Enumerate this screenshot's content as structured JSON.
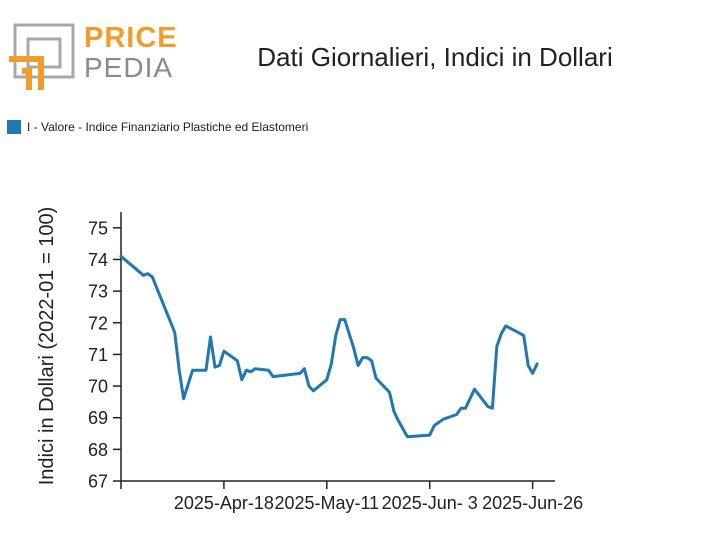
{
  "brand": {
    "word1": "PRICE",
    "word2": "PEDIA",
    "accent_color": "#f29c2b",
    "gray_color": "#8a8a8a"
  },
  "chart_data": {
    "type": "line",
    "title": "Dati Giornalieri, Indici in Dollari",
    "ylabel": "Indici in Dollari (2022-01 = 100)",
    "xlabel": "",
    "ylim": [
      67,
      75.5
    ],
    "yticks": [
      67,
      68,
      69,
      70,
      71,
      72,
      73,
      74,
      75
    ],
    "x_range": [
      "2025-03-26",
      "2025-07-01"
    ],
    "xticks": [
      {
        "date": "2025-04-18",
        "label": "2025-Apr-18"
      },
      {
        "date": "2025-05-11",
        "label": "2025-May-11"
      },
      {
        "date": "2025-06-03",
        "label": "2025-Jun- 3"
      },
      {
        "date": "2025-06-26",
        "label": "2025-Jun-26"
      }
    ],
    "legend_position": "top-left",
    "grid": false,
    "series": [
      {
        "name": "I - Valore - Indice Finanziario Plastiche ed Elastomeri",
        "color": "#1f77b4",
        "points": [
          [
            "2025-03-26",
            74.1
          ],
          [
            "2025-03-31",
            73.5
          ],
          [
            "2025-04-01",
            73.55
          ],
          [
            "2025-04-02",
            73.45
          ],
          [
            "2025-04-07",
            71.7
          ],
          [
            "2025-04-08",
            70.5
          ],
          [
            "2025-04-09",
            69.6
          ],
          [
            "2025-04-11",
            70.5
          ],
          [
            "2025-04-14",
            70.5
          ],
          [
            "2025-04-15",
            71.55
          ],
          [
            "2025-04-16",
            70.6
          ],
          [
            "2025-04-17",
            70.65
          ],
          [
            "2025-04-18",
            71.1
          ],
          [
            "2025-04-21",
            70.8
          ],
          [
            "2025-04-22",
            70.2
          ],
          [
            "2025-04-23",
            70.5
          ],
          [
            "2025-04-24",
            70.45
          ],
          [
            "2025-04-25",
            70.55
          ],
          [
            "2025-04-28",
            70.5
          ],
          [
            "2025-04-29",
            70.3
          ],
          [
            "2025-05-05",
            70.4
          ],
          [
            "2025-05-06",
            70.55
          ],
          [
            "2025-05-07",
            70.0
          ],
          [
            "2025-05-08",
            69.85
          ],
          [
            "2025-05-11",
            70.2
          ],
          [
            "2025-05-12",
            70.7
          ],
          [
            "2025-05-13",
            71.6
          ],
          [
            "2025-05-14",
            72.1
          ],
          [
            "2025-05-15",
            72.1
          ],
          [
            "2025-05-17",
            71.2
          ],
          [
            "2025-05-18",
            70.65
          ],
          [
            "2025-05-19",
            70.9
          ],
          [
            "2025-05-20",
            70.9
          ],
          [
            "2025-05-21",
            70.8
          ],
          [
            "2025-05-22",
            70.25
          ],
          [
            "2025-05-25",
            69.8
          ],
          [
            "2025-05-26",
            69.2
          ],
          [
            "2025-05-27",
            68.9
          ],
          [
            "2025-05-29",
            68.4
          ],
          [
            "2025-06-03",
            68.45
          ],
          [
            "2025-06-04",
            68.75
          ],
          [
            "2025-06-06",
            68.95
          ],
          [
            "2025-06-09",
            69.1
          ],
          [
            "2025-06-10",
            69.3
          ],
          [
            "2025-06-11",
            69.3
          ],
          [
            "2025-06-13",
            69.9
          ],
          [
            "2025-06-16",
            69.35
          ],
          [
            "2025-06-17",
            69.3
          ],
          [
            "2025-06-18",
            71.25
          ],
          [
            "2025-06-19",
            71.65
          ],
          [
            "2025-06-20",
            71.9
          ],
          [
            "2025-06-24",
            71.6
          ],
          [
            "2025-06-25",
            70.65
          ],
          [
            "2025-06-26",
            70.4
          ],
          [
            "2025-06-27",
            70.7
          ]
        ]
      }
    ]
  }
}
